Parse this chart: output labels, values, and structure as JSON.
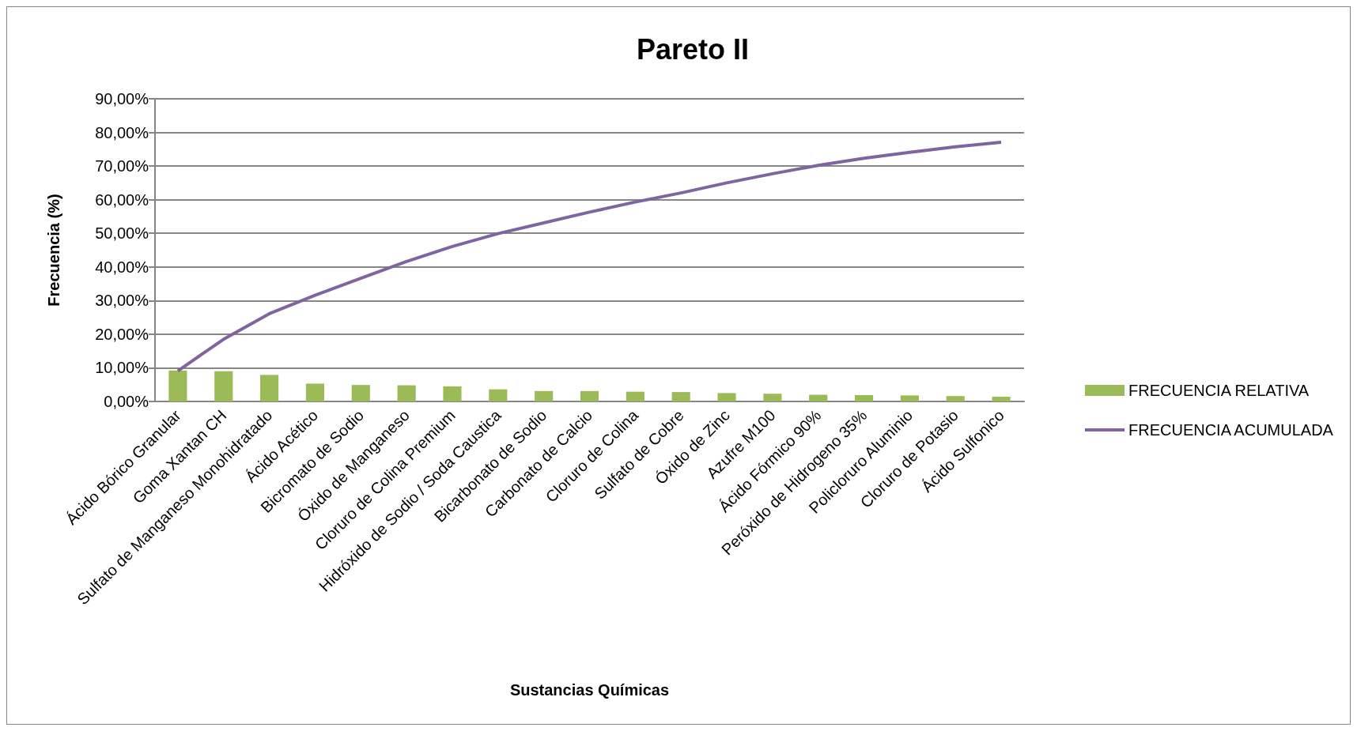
{
  "chart_data": {
    "type": "bar",
    "title": "Pareto II",
    "xlabel": "Sustancias Químicas",
    "ylabel": "Frecuencia (%)",
    "categories": [
      "Ácido Bórico Granular",
      "Goma Xantan CH",
      "Sulfato de Manganeso Monohidratado",
      "Ácido Acético",
      "Bicromato de Sodio",
      "Óxido de Manganeso",
      "Cloruro de Colina Premium",
      "Hidróxido de Sodio / Soda Caustica",
      "Bicarbonato de Sodio",
      "Carbonato de Calcio",
      "Cloruro de Colina",
      "Sulfato de Cobre",
      "Óxido de Zinc",
      "Azufre M100",
      "Ácido Fórmico 90%",
      "Peróxido de Hidrogeno 35%",
      "Policloruro Aluminio",
      "Cloruro de Potasio",
      "Ácido Sulfonico"
    ],
    "series": [
      {
        "name": "FRECUENCIA RELATIVA",
        "color": "#9bbb59",
        "values": [
          9.2,
          9.0,
          7.9,
          5.3,
          4.9,
          4.8,
          4.5,
          3.6,
          3.1,
          3.1,
          2.9,
          2.8,
          2.5,
          2.3,
          2.0,
          1.9,
          1.8,
          1.6,
          1.4
        ]
      },
      {
        "name": "FRECUENCIA ACUMULADA",
        "type": "line",
        "color": "#8064a2",
        "values": [
          9.1,
          18.5,
          26.1,
          31.6,
          36.6,
          41.6,
          46.1,
          49.9,
          53.1,
          56.3,
          59.3,
          62.0,
          65.0,
          67.7,
          70.2,
          72.3,
          74.1,
          75.7,
          77.1
        ]
      }
    ],
    "ylim": [
      0,
      90
    ],
    "yticks": [
      {
        "value": 0,
        "label": "0,00%"
      },
      {
        "value": 10,
        "label": "10,00%"
      },
      {
        "value": 20,
        "label": "20,00%"
      },
      {
        "value": 30,
        "label": "30,00%"
      },
      {
        "value": 40,
        "label": "40,00%"
      },
      {
        "value": 50,
        "label": "50,00%"
      },
      {
        "value": 60,
        "label": "60,00%"
      },
      {
        "value": 70,
        "label": "70,00%"
      },
      {
        "value": 80,
        "label": "80,00%"
      },
      {
        "value": 90,
        "label": "90,00%"
      }
    ],
    "grid": "y",
    "legend": "right",
    "marker": "none"
  }
}
